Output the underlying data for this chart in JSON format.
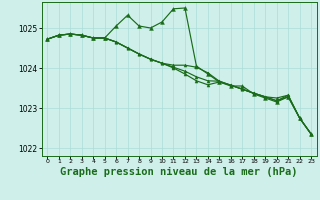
{
  "background_color": "#cff0ea",
  "grid_color": "#aaddd6",
  "line_color": "#1a6b1a",
  "marker_color": "#1a6b1a",
  "xlabel": "Graphe pression niveau de la mer (hPa)",
  "xlabel_fontsize": 7.5,
  "ylim": [
    1021.8,
    1025.65
  ],
  "xlim": [
    -0.5,
    23.5
  ],
  "yticks": [
    1022,
    1023,
    1024,
    1025
  ],
  "xticks": [
    0,
    1,
    2,
    3,
    4,
    5,
    6,
    7,
    8,
    9,
    10,
    11,
    12,
    13,
    14,
    15,
    16,
    17,
    18,
    19,
    20,
    21,
    22,
    23
  ],
  "series": [
    [
      1024.72,
      1024.82,
      1024.85,
      1024.82,
      1024.75,
      1024.75,
      1025.05,
      1025.32,
      1025.05,
      1025.0,
      1025.15,
      1025.48,
      1025.5,
      1024.05,
      1023.85,
      1023.65,
      1023.55,
      1023.55,
      1023.35,
      1023.25,
      1023.15,
      1023.28,
      1022.75,
      1022.35
    ],
    [
      1024.72,
      1024.82,
      1024.85,
      1024.82,
      1024.75,
      1024.75,
      1024.65,
      1024.5,
      1024.35,
      1024.22,
      1024.12,
      1024.0,
      1023.85,
      1023.68,
      1023.58,
      1023.65,
      1023.57,
      1023.47,
      1023.37,
      1023.28,
      1023.18,
      1023.28,
      1022.75,
      1022.35
    ],
    [
      1024.72,
      1024.82,
      1024.85,
      1024.82,
      1024.75,
      1024.75,
      1024.65,
      1024.5,
      1024.35,
      1024.22,
      1024.12,
      1024.02,
      1023.92,
      1023.78,
      1023.68,
      1023.67,
      1023.57,
      1023.47,
      1023.37,
      1023.28,
      1023.18,
      1023.32,
      1022.75,
      1022.35
    ],
    [
      1024.72,
      1024.82,
      1024.85,
      1024.82,
      1024.75,
      1024.75,
      1024.65,
      1024.5,
      1024.35,
      1024.22,
      1024.12,
      1024.07,
      1024.07,
      1024.02,
      1023.88,
      1023.67,
      1023.57,
      1023.47,
      1023.37,
      1023.28,
      1023.25,
      1023.32,
      1022.75,
      1022.35
    ]
  ]
}
